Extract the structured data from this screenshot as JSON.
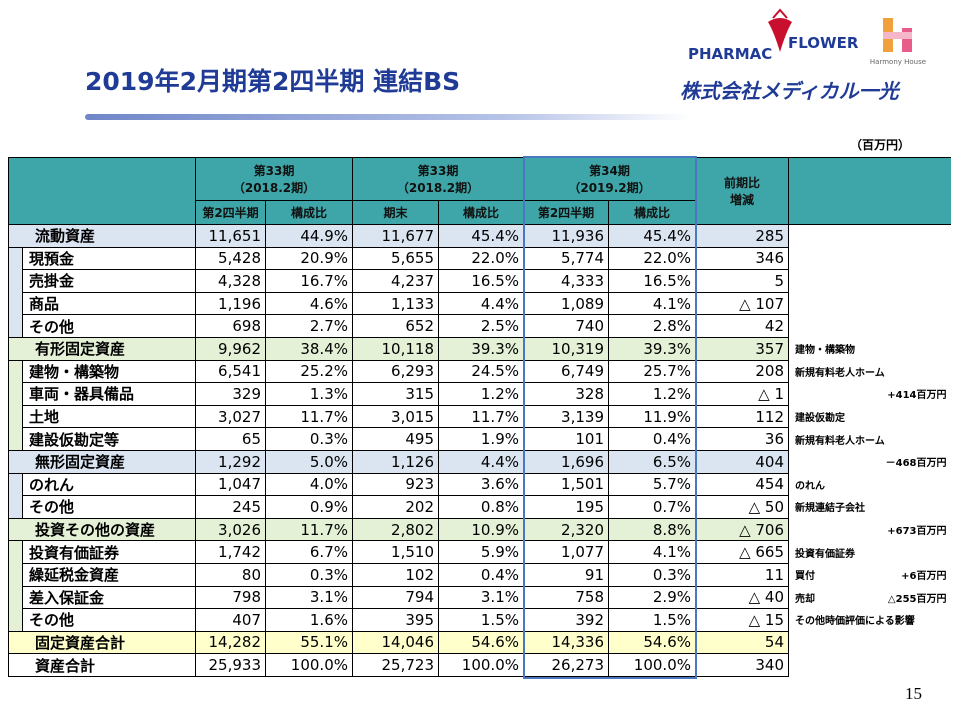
{
  "header": {
    "title": "2019年2月期第2四半期 連結BS",
    "logo": {
      "brand_left": "PHARMAC",
      "brand_right": "FLOWER",
      "harmony": "Harmony House",
      "company": "株式会社メディカル一光"
    },
    "unit": "（百万円）"
  },
  "table": {
    "groups": [
      {
        "period": "第33期",
        "fiscal": "（2018.2期）"
      },
      {
        "period": "第33期",
        "fiscal": "（2018.2期）"
      },
      {
        "period": "第34期",
        "fiscal": "（2019.2期）"
      }
    ],
    "change": [
      "前期比",
      "増減"
    ],
    "subheaders": [
      "第2四半期",
      "構成比",
      "期末",
      "構成比",
      "第2四半期",
      "構成比"
    ],
    "sections": [
      {
        "label": "流動資産",
        "values": [
          "11,651",
          "44.9%",
          "11,677",
          "45.4%",
          "11,936",
          "45.4%",
          "285"
        ],
        "notes": [],
        "items": [
          {
            "label": "現預金",
            "values": [
              "5,428",
              "20.9%",
              "5,655",
              "22.0%",
              "5,774",
              "22.0%",
              "346"
            ],
            "notes": []
          },
          {
            "label": "売掛金",
            "values": [
              "4,328",
              "16.7%",
              "4,237",
              "16.5%",
              "4,333",
              "16.5%",
              "5"
            ],
            "notes": []
          },
          {
            "label": "商品",
            "values": [
              "1,196",
              "4.6%",
              "1,133",
              "4.4%",
              "1,089",
              "4.1%",
              "△ 107"
            ],
            "notes": []
          },
          {
            "label": "その他",
            "values": [
              "698",
              "2.7%",
              "652",
              "2.5%",
              "740",
              "2.8%",
              "42"
            ],
            "notes": []
          }
        ]
      },
      {
        "label": "有形固定資産",
        "values": [
          "9,962",
          "38.4%",
          "10,118",
          "39.3%",
          "10,319",
          "39.3%",
          "357"
        ],
        "notes": [
          "建物・構築物"
        ],
        "items": [
          {
            "label": "建物・構築物",
            "values": [
              "6,541",
              "25.2%",
              "6,293",
              "24.5%",
              "6,749",
              "25.7%",
              "208"
            ],
            "notes": [
              "新規有料老人ホーム"
            ]
          },
          {
            "label": "車両・器具備品",
            "values": [
              "329",
              "1.3%",
              "315",
              "1.2%",
              "328",
              "1.2%",
              "△ 1"
            ],
            "notes": [
              "+414百万円"
            ]
          },
          {
            "label": "土地",
            "values": [
              "3,027",
              "11.7%",
              "3,015",
              "11.7%",
              "3,139",
              "11.9%",
              "112"
            ],
            "notes": [
              "建設仮勘定"
            ]
          },
          {
            "label": "建設仮勘定等",
            "values": [
              "65",
              "0.3%",
              "495",
              "1.9%",
              "101",
              "0.4%",
              "36"
            ],
            "notes": [
              "新規有料老人ホーム"
            ]
          }
        ]
      },
      {
        "label": "無形固定資産",
        "values": [
          "1,292",
          "5.0%",
          "1,126",
          "4.4%",
          "1,696",
          "6.5%",
          "404"
        ],
        "notes": [
          "－468百万円"
        ],
        "items": [
          {
            "label": "のれん",
            "values": [
              "1,047",
              "4.0%",
              "923",
              "3.6%",
              "1,501",
              "5.7%",
              "454"
            ],
            "notes": [
              "のれん"
            ]
          },
          {
            "label": "その他",
            "values": [
              "245",
              "0.9%",
              "202",
              "0.8%",
              "195",
              "0.7%",
              "△ 50"
            ],
            "notes": [
              "新規連結子会社"
            ]
          }
        ]
      },
      {
        "label": "投資その他の資産",
        "values": [
          "3,026",
          "11.7%",
          "2,802",
          "10.9%",
          "2,320",
          "8.8%",
          "△ 706"
        ],
        "notes": [
          "+673百万円"
        ],
        "items": [
          {
            "label": "投資有価証券",
            "values": [
              "1,742",
              "6.7%",
              "1,510",
              "5.9%",
              "1,077",
              "4.1%",
              "△ 665"
            ],
            "notes": [
              "投資有価証券"
            ]
          },
          {
            "label": "繰延税金資産",
            "values": [
              "80",
              "0.3%",
              "102",
              "0.4%",
              "91",
              "0.3%",
              "11"
            ],
            "notes": [
              "買付",
              "+6百万円"
            ]
          },
          {
            "label": "差入保証金",
            "values": [
              "798",
              "3.1%",
              "794",
              "3.1%",
              "758",
              "2.9%",
              "△ 40"
            ],
            "notes": [
              "売却",
              "△255百万円"
            ]
          },
          {
            "label": "その他",
            "values": [
              "407",
              "1.6%",
              "395",
              "1.5%",
              "392",
              "1.5%",
              "△ 15"
            ],
            "notes": [
              "その他時価評価による影響"
            ]
          }
        ]
      }
    ],
    "totals": [
      {
        "label": "固定資産合計",
        "values": [
          "14,282",
          "55.1%",
          "14,046",
          "54.6%",
          "14,336",
          "54.6%",
          "54"
        ]
      },
      {
        "label": "資産合計",
        "values": [
          "25,933",
          "100.0%",
          "25,723",
          "100.0%",
          "26,273",
          "100.0%",
          "340"
        ]
      }
    ]
  },
  "page_number": "15"
}
